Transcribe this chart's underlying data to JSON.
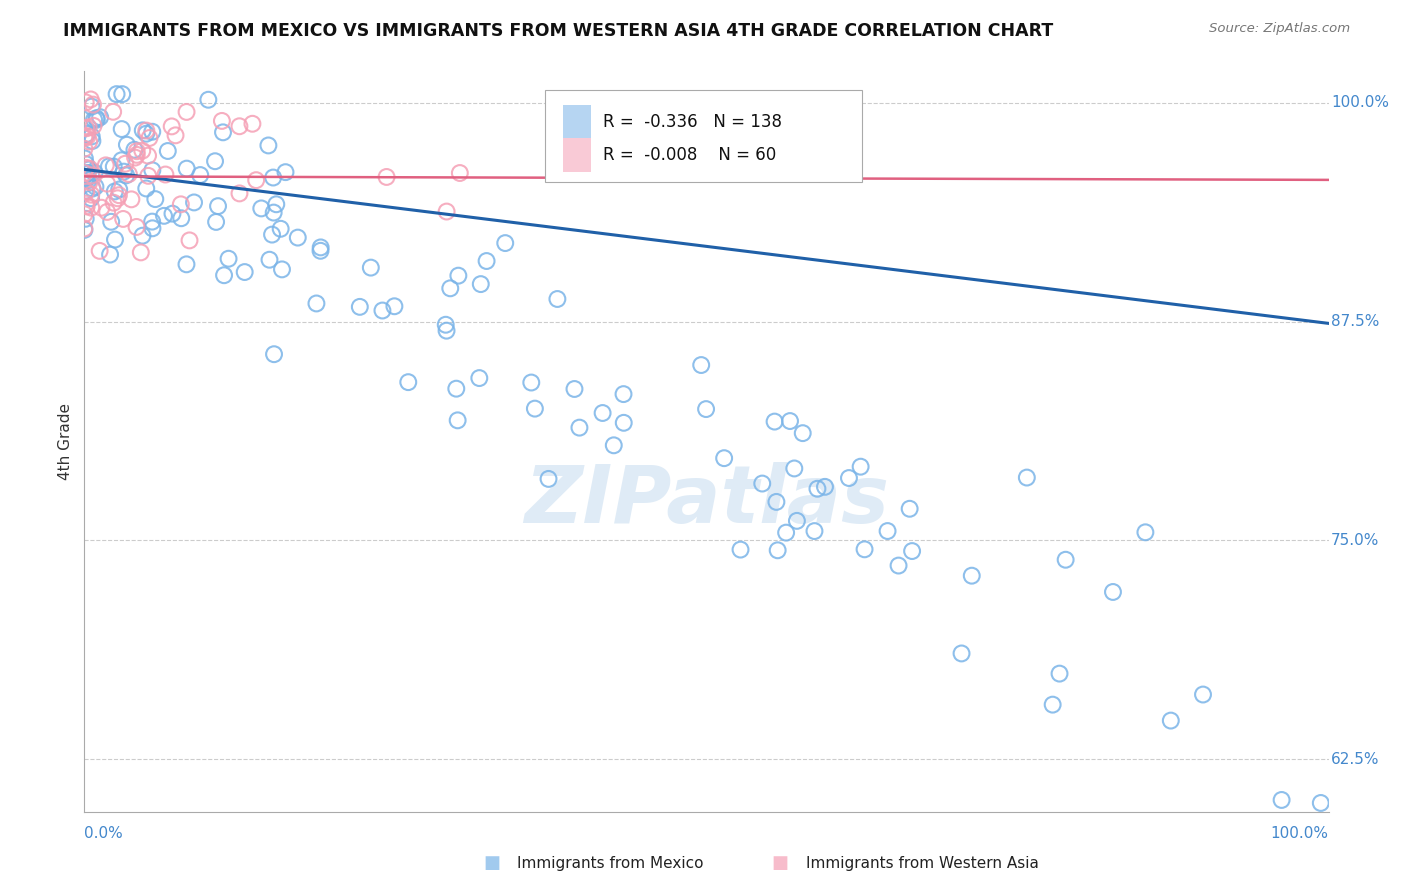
{
  "title": "IMMIGRANTS FROM MEXICO VS IMMIGRANTS FROM WESTERN ASIA 4TH GRADE CORRELATION CHART",
  "source": "Source: ZipAtlas.com",
  "ylabel": "4th Grade",
  "xlim": [
    0.0,
    1.0
  ],
  "ylim": [
    0.595,
    1.018
  ],
  "yticks": [
    0.625,
    0.75,
    0.875,
    1.0
  ],
  "ytick_labels": [
    "62.5%",
    "75.0%",
    "87.5%",
    "100.0%"
  ],
  "blue_color": "#7ab4e8",
  "pink_color": "#f5a0b5",
  "trend_blue_color": "#2060a8",
  "trend_pink_color": "#e06080",
  "blue_r": "-0.336",
  "blue_n": "138",
  "pink_r": "-0.008",
  "pink_n": "60",
  "blue_label": "Immigrants from Mexico",
  "pink_label": "Immigrants from Western Asia",
  "watermark": "ZIPatlas",
  "watermark_color": "#c0d8ee",
  "background": "#ffffff",
  "grid_color": "#cccccc",
  "ytick_color": "#4488cc",
  "xtick_color": "#4488cc"
}
